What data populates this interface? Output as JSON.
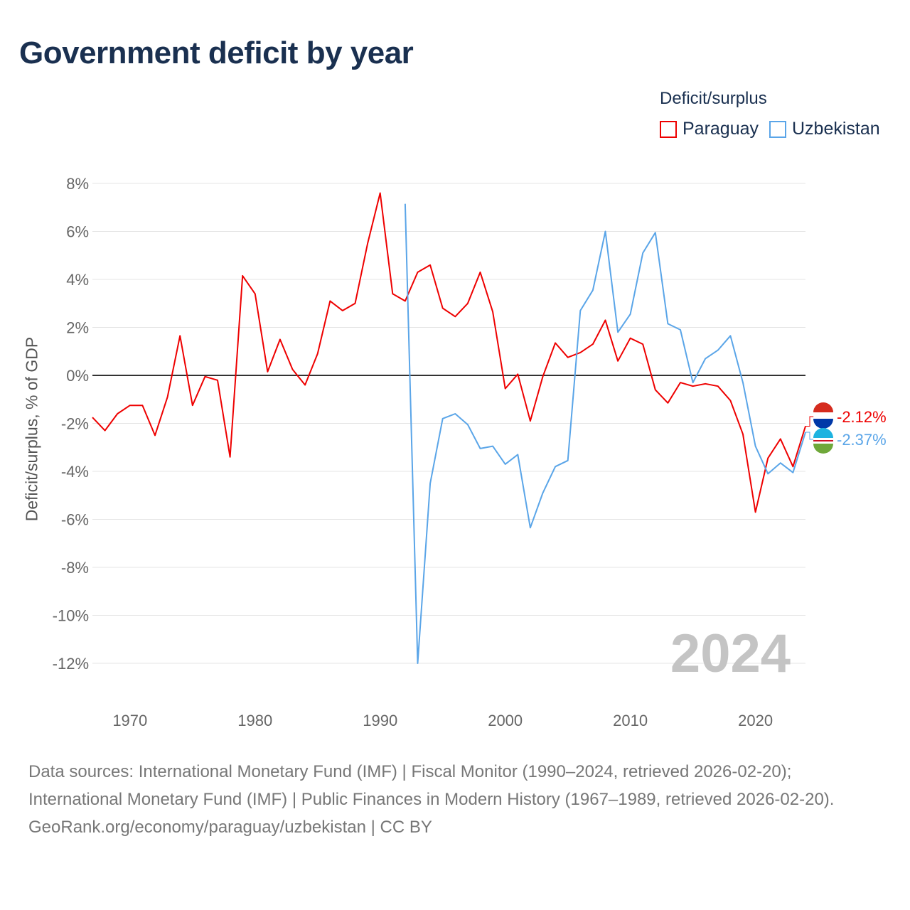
{
  "title": "Government deficit by year",
  "legend_title": "Deficit/surplus",
  "chart_data": {
    "type": "line",
    "title": "Government deficit by year",
    "xlabel": "",
    "ylabel": "Deficit/surplus, % of GDP",
    "xlim": [
      1967,
      2024
    ],
    "ylim": [
      -12,
      8
    ],
    "x_ticks": [
      1970,
      1980,
      1990,
      2000,
      2010,
      2020
    ],
    "y_ticks": [
      8,
      6,
      4,
      2,
      0,
      -2,
      -4,
      -6,
      -8,
      -10,
      -12
    ],
    "y_tick_labels": [
      "8%",
      "6%",
      "4%",
      "2%",
      "0%",
      "-2%",
      "-4%",
      "-6%",
      "-8%",
      "-10%",
      "-12%"
    ],
    "grid": true,
    "legend_position": "top-right",
    "year_watermark": "2024",
    "series": [
      {
        "name": "Paraguay",
        "color": "#ee0000",
        "end_label": "-2.12%",
        "start_year": 1967,
        "values": [
          -1.75,
          -2.3,
          -1.6,
          -1.25,
          -1.25,
          -2.5,
          -0.9,
          1.65,
          -1.25,
          -0.05,
          -0.2,
          -3.4,
          4.15,
          3.4,
          0.15,
          1.5,
          0.25,
          -0.4,
          0.9,
          3.1,
          2.7,
          3.0,
          5.5,
          7.6,
          3.4,
          3.1,
          4.3,
          4.6,
          2.8,
          2.45,
          3.0,
          4.3,
          2.65,
          -0.55,
          0.05,
          -1.9,
          -0.05,
          1.35,
          0.75,
          0.95,
          1.3,
          2.3,
          0.6,
          1.55,
          1.3,
          -0.6,
          -1.15,
          -0.3,
          -0.45,
          -0.35,
          -0.45,
          -1.05,
          -2.45,
          -5.7,
          -3.45,
          -2.65,
          -3.8,
          -2.12
        ]
      },
      {
        "name": "Uzbekistan",
        "color": "#5aa5e8",
        "end_label": "-2.37%",
        "start_year": 1992,
        "values": [
          7.15,
          -12.0,
          -4.5,
          -1.8,
          -1.6,
          -2.05,
          -3.05,
          -2.95,
          -3.7,
          -3.3,
          -6.35,
          -4.9,
          -3.8,
          -3.55,
          2.7,
          3.55,
          6.0,
          1.8,
          2.55,
          5.1,
          5.95,
          2.15,
          1.9,
          -0.3,
          0.7,
          1.05,
          1.65,
          -0.3,
          -2.95,
          -4.1,
          -3.65,
          -4.05,
          -2.37
        ]
      }
    ]
  },
  "source_lines": [
    "Data sources: International Monetary Fund (IMF) | Fiscal Monitor (1990–2024, retrieved 2026-02-20); International Monetary Fund (IMF) | Public Finances in Modern History (1967–1989, retrieved 2026-02-20).",
    "GeoRank.org/economy/paraguay/uzbekistan | CC BY"
  ]
}
